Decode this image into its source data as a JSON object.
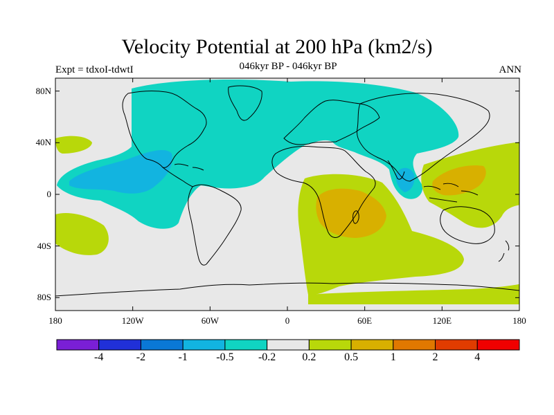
{
  "title": "Velocity Potential at 200 hPa (km2/s)",
  "subtitle": "046kyr BP - 046kyr BP",
  "left_label": "Expt = tdxoI-tdwtI",
  "right_label": "ANN",
  "map": {
    "projection": "cylindrical-equidistant",
    "lon_range": [
      -180,
      180
    ],
    "lat_range": [
      -90,
      90
    ],
    "background_color": "#e8e8e8",
    "y_ticks": [
      {
        "lat": 80,
        "label": "80N"
      },
      {
        "lat": 40,
        "label": "40N"
      },
      {
        "lat": 0,
        "label": "0"
      },
      {
        "lat": -40,
        "label": "40S"
      },
      {
        "lat": -80,
        "label": "80S"
      }
    ],
    "x_ticks": [
      {
        "lon": -180,
        "label": "180"
      },
      {
        "lon": -120,
        "label": "120W"
      },
      {
        "lon": -60,
        "label": "60W"
      },
      {
        "lon": 0,
        "label": "0"
      },
      {
        "lon": 60,
        "label": "60E"
      },
      {
        "lon": 120,
        "label": "120E"
      },
      {
        "lon": 180,
        "label": "180"
      }
    ]
  },
  "colorbar": {
    "colors": [
      "#7a1fd6",
      "#2030d8",
      "#0a78d6",
      "#12b4e0",
      "#10d4c2",
      "#e8e8e8",
      "#b8d80a",
      "#d8b000",
      "#e07800",
      "#e03c00",
      "#f00000"
    ],
    "labels": [
      "-4",
      "-2",
      "-1",
      "-0.5",
      "-0.2",
      "0.2",
      "0.5",
      "1",
      "2",
      "4"
    ]
  }
}
